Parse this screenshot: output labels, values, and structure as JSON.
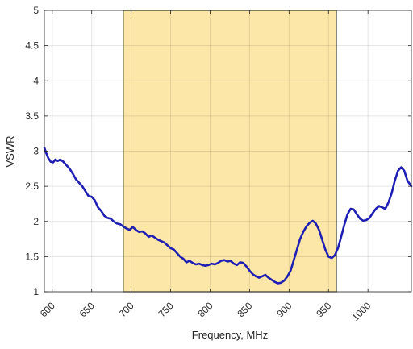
{
  "chart_data": {
    "type": "line",
    "title": "",
    "xlabel": "Frequency, MHz",
    "ylabel": "VSWR",
    "xlim": [
      590,
      1055
    ],
    "ylim": [
      1,
      5
    ],
    "grid": true,
    "x_ticks": [
      600,
      650,
      700,
      750,
      800,
      850,
      900,
      950,
      1000
    ],
    "y_ticks": [
      1,
      1.5,
      2,
      2.5,
      3,
      3.5,
      4,
      4.5,
      5
    ],
    "highlight_band": {
      "x_start": 690,
      "x_end": 960,
      "color": "#fde7a8",
      "edge_color": "#3d4a3a"
    },
    "series": [
      {
        "color": "#1f1fb4",
        "x": [
          590,
          592,
          595,
          598,
          601,
          604,
          607,
          610,
          614,
          618,
          622,
          626,
          630,
          634,
          638,
          642,
          646,
          650,
          654,
          658,
          662,
          666,
          670,
          674,
          678,
          682,
          686,
          690,
          694,
          698,
          702,
          706,
          710,
          714,
          718,
          722,
          726,
          730,
          734,
          738,
          742,
          746,
          750,
          754,
          758,
          762,
          766,
          770,
          774,
          778,
          782,
          786,
          790,
          794,
          798,
          802,
          806,
          810,
          814,
          818,
          822,
          826,
          830,
          834,
          838,
          842,
          846,
          850,
          854,
          858,
          862,
          866,
          870,
          874,
          878,
          882,
          886,
          890,
          894,
          898,
          902,
          906,
          910,
          914,
          918,
          922,
          926,
          930,
          934,
          938,
          942,
          946,
          950,
          954,
          958,
          962,
          966,
          970,
          974,
          978,
          982,
          986,
          990,
          994,
          998,
          1002,
          1006,
          1010,
          1014,
          1018,
          1022,
          1026,
          1030,
          1034,
          1038,
          1042,
          1046,
          1050,
          1055
        ],
        "y": [
          3.05,
          2.98,
          2.9,
          2.85,
          2.84,
          2.88,
          2.86,
          2.88,
          2.85,
          2.8,
          2.75,
          2.68,
          2.6,
          2.55,
          2.5,
          2.43,
          2.36,
          2.35,
          2.3,
          2.2,
          2.15,
          2.08,
          2.05,
          2.04,
          2.0,
          1.97,
          1.96,
          1.93,
          1.9,
          1.88,
          1.92,
          1.88,
          1.85,
          1.86,
          1.83,
          1.78,
          1.8,
          1.77,
          1.74,
          1.72,
          1.7,
          1.66,
          1.62,
          1.6,
          1.55,
          1.5,
          1.47,
          1.42,
          1.44,
          1.41,
          1.39,
          1.4,
          1.38,
          1.37,
          1.38,
          1.4,
          1.39,
          1.41,
          1.44,
          1.45,
          1.43,
          1.44,
          1.4,
          1.38,
          1.42,
          1.41,
          1.36,
          1.3,
          1.25,
          1.22,
          1.2,
          1.22,
          1.24,
          1.2,
          1.17,
          1.14,
          1.12,
          1.13,
          1.16,
          1.22,
          1.3,
          1.45,
          1.6,
          1.75,
          1.85,
          1.93,
          1.98,
          2.01,
          1.97,
          1.88,
          1.74,
          1.6,
          1.5,
          1.48,
          1.52,
          1.62,
          1.78,
          1.95,
          2.1,
          2.18,
          2.17,
          2.1,
          2.04,
          2.01,
          2.02,
          2.05,
          2.12,
          2.18,
          2.22,
          2.2,
          2.18,
          2.27,
          2.4,
          2.58,
          2.72,
          2.77,
          2.72,
          2.58,
          2.5
        ]
      }
    ]
  }
}
